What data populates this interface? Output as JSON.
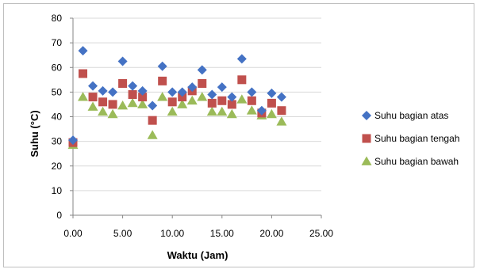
{
  "chart_data": {
    "type": "scatter",
    "title": "",
    "xlabel": "Waktu (Jam)",
    "ylabel": "Suhu (°C)",
    "xlim": [
      0,
      25
    ],
    "ylim": [
      0,
      80
    ],
    "x_ticks": [
      "0.00",
      "5.00",
      "10.00",
      "15.00",
      "20.00",
      "25.00"
    ],
    "y_ticks": [
      "0",
      "10",
      "20",
      "30",
      "40",
      "50",
      "60",
      "70",
      "80"
    ],
    "grid": "horizontal",
    "legend_position": "right",
    "series": [
      {
        "name": "Suhu bagian atas",
        "marker": "diamond",
        "color": "#4472C4",
        "points": [
          [
            0,
            30.5
          ],
          [
            1,
            66.8
          ],
          [
            2,
            52.5
          ],
          [
            3,
            50.5
          ],
          [
            4,
            50.0
          ],
          [
            5,
            62.5
          ],
          [
            6,
            52.5
          ],
          [
            7,
            50.5
          ],
          [
            8,
            44.5
          ],
          [
            9,
            60.5
          ],
          [
            10,
            50.0
          ],
          [
            11,
            50.0
          ],
          [
            12,
            52.0
          ],
          [
            13,
            59.0
          ],
          [
            14,
            49.0
          ],
          [
            15,
            52.0
          ],
          [
            16,
            48.0
          ],
          [
            17,
            63.5
          ],
          [
            18,
            50.0
          ],
          [
            19,
            42.5
          ],
          [
            20,
            49.5
          ],
          [
            21,
            48.0
          ]
        ]
      },
      {
        "name": "Suhu bagian tengah",
        "marker": "square",
        "color": "#C0504D",
        "points": [
          [
            0,
            29.5
          ],
          [
            1,
            57.5
          ],
          [
            2,
            48.0
          ],
          [
            3,
            46.0
          ],
          [
            4,
            45.0
          ],
          [
            5,
            53.5
          ],
          [
            6,
            49.0
          ],
          [
            7,
            48.0
          ],
          [
            8,
            38.5
          ],
          [
            9,
            54.5
          ],
          [
            10,
            46.0
          ],
          [
            11,
            48.0
          ],
          [
            12,
            50.5
          ],
          [
            13,
            53.5
          ],
          [
            14,
            45.5
          ],
          [
            15,
            46.5
          ],
          [
            16,
            45.0
          ],
          [
            17,
            55.0
          ],
          [
            18,
            46.5
          ],
          [
            19,
            41.5
          ],
          [
            20,
            45.5
          ],
          [
            21,
            42.5
          ]
        ]
      },
      {
        "name": "Suhu bagian bawah",
        "marker": "triangle",
        "color": "#9BBB59",
        "points": [
          [
            0,
            28.5
          ],
          [
            1,
            48.0
          ],
          [
            2,
            44.0
          ],
          [
            3,
            42.0
          ],
          [
            4,
            41.0
          ],
          [
            5,
            44.5
          ],
          [
            6,
            45.5
          ],
          [
            7,
            45.0
          ],
          [
            8,
            32.5
          ],
          [
            9,
            48.0
          ],
          [
            10,
            42.0
          ],
          [
            11,
            45.0
          ],
          [
            12,
            46.5
          ],
          [
            13,
            48.0
          ],
          [
            14,
            42.0
          ],
          [
            15,
            42.0
          ],
          [
            16,
            41.0
          ],
          [
            17,
            47.0
          ],
          [
            18,
            42.5
          ],
          [
            19,
            40.5
          ],
          [
            20,
            41.0
          ],
          [
            21,
            38.0
          ]
        ]
      }
    ]
  }
}
